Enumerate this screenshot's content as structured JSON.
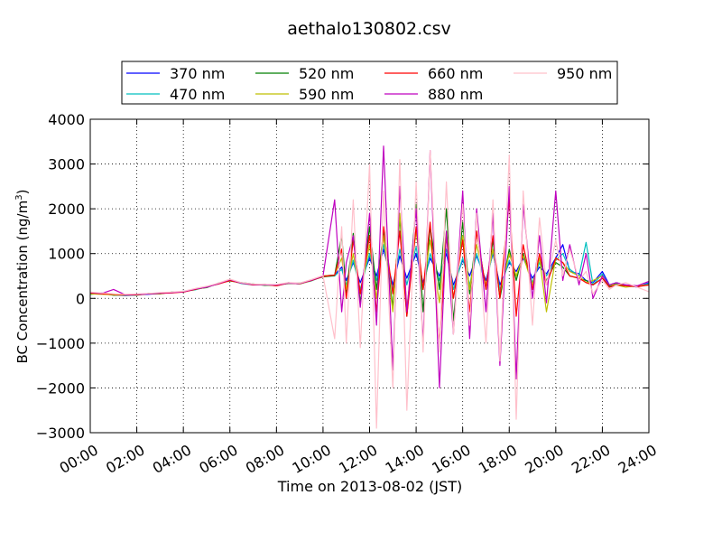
{
  "chart_data": {
    "type": "line",
    "title": "aethalo130802.csv",
    "xlabel": "Time on 2013-08-02 (JST)",
    "ylabel_main": "BC Concentration (ng/m",
    "ylabel_sup": "3",
    "ylabel_close": ")",
    "x_unit": "hours",
    "xlim": [
      0,
      24
    ],
    "ylim": [
      -3000,
      4000
    ],
    "grid": true,
    "grid_style": "dotted",
    "legend_position": "top",
    "x_ticks": [
      {
        "value": 0,
        "label": "00:00"
      },
      {
        "value": 2,
        "label": "02:00"
      },
      {
        "value": 4,
        "label": "04:00"
      },
      {
        "value": 6,
        "label": "06:00"
      },
      {
        "value": 8,
        "label": "08:00"
      },
      {
        "value": 10,
        "label": "10:00"
      },
      {
        "value": 12,
        "label": "12:00"
      },
      {
        "value": 14,
        "label": "14:00"
      },
      {
        "value": 16,
        "label": "16:00"
      },
      {
        "value": 18,
        "label": "18:00"
      },
      {
        "value": 20,
        "label": "20:00"
      },
      {
        "value": 22,
        "label": "22:00"
      },
      {
        "value": 24,
        "label": "24:00"
      }
    ],
    "y_ticks": [
      {
        "value": 4000,
        "label": "4000"
      },
      {
        "value": 3000,
        "label": "3000"
      },
      {
        "value": 2000,
        "label": "2000"
      },
      {
        "value": 1000,
        "label": "1000"
      },
      {
        "value": 0,
        "label": "0"
      },
      {
        "value": -1000,
        "label": "−1000"
      },
      {
        "value": -2000,
        "label": "−2000"
      },
      {
        "value": -3000,
        "label": "−3000"
      }
    ],
    "series": [
      {
        "name": "370 nm",
        "color": "#0000ff",
        "x": [
          0,
          0.5,
          1,
          1.5,
          2,
          2.5,
          3,
          3.5,
          4,
          4.5,
          5,
          5.5,
          6,
          6.5,
          7,
          7.5,
          8,
          8.5,
          9,
          9.5,
          10,
          10.5,
          10.8,
          11,
          11.3,
          11.6,
          12,
          12.3,
          12.6,
          13,
          13.3,
          13.6,
          14,
          14.3,
          14.6,
          15,
          15.3,
          15.6,
          16,
          16.3,
          16.6,
          17,
          17.3,
          17.6,
          18,
          18.3,
          18.6,
          19,
          19.3,
          19.6,
          20,
          20.3,
          20.6,
          21,
          21.3,
          21.6,
          22,
          22.3,
          22.6,
          23,
          23.5,
          24
        ],
        "y": [
          100,
          120,
          80,
          60,
          80,
          90,
          110,
          130,
          150,
          200,
          250,
          330,
          400,
          340,
          310,
          300,
          290,
          350,
          320,
          400,
          500,
          520,
          700,
          400,
          800,
          350,
          900,
          500,
          1100,
          300,
          950,
          450,
          1000,
          350,
          900,
          500,
          1000,
          300,
          850,
          500,
          950,
          400,
          1000,
          300,
          800,
          600,
          900,
          450,
          700,
          550,
          900,
          1200,
          600,
          550,
          400,
          350,
          600,
          300,
          350,
          300,
          250,
          350
        ]
      },
      {
        "name": "470 nm",
        "color": "#00bfbf",
        "x": [
          0,
          0.5,
          1,
          1.5,
          2,
          2.5,
          3,
          3.5,
          4,
          4.5,
          5,
          5.5,
          6,
          6.5,
          7,
          7.5,
          8,
          8.5,
          9,
          9.5,
          10,
          10.5,
          10.8,
          11,
          11.3,
          11.6,
          12,
          12.3,
          12.6,
          13,
          13.3,
          13.6,
          14,
          14.3,
          14.6,
          15,
          15.3,
          15.6,
          16,
          16.3,
          16.6,
          17,
          17.3,
          17.6,
          18,
          18.3,
          18.6,
          19,
          19.3,
          19.6,
          20,
          20.3,
          20.6,
          21,
          21.3,
          21.6,
          22,
          22.3,
          22.6,
          23,
          23.5,
          24
        ],
        "y": [
          110,
          100,
          90,
          70,
          90,
          100,
          120,
          120,
          160,
          190,
          260,
          320,
          410,
          330,
          300,
          310,
          280,
          340,
          330,
          390,
          490,
          500,
          650,
          300,
          850,
          200,
          1000,
          400,
          1200,
          200,
          1100,
          300,
          1150,
          200,
          1000,
          400,
          1100,
          200,
          900,
          300,
          1000,
          300,
          1050,
          200,
          850,
          500,
          950,
          350,
          800,
          500,
          850,
          1000,
          650,
          500,
          1250,
          300,
          550,
          250,
          300,
          280,
          260,
          330
        ]
      },
      {
        "name": "520 nm",
        "color": "#007f00",
        "x": [
          0,
          0.5,
          1,
          1.5,
          2,
          2.5,
          3,
          3.5,
          4,
          4.5,
          5,
          5.5,
          6,
          6.5,
          7,
          7.5,
          8,
          8.5,
          9,
          9.5,
          10,
          10.5,
          10.8,
          11,
          11.3,
          11.6,
          12,
          12.3,
          12.6,
          13,
          13.3,
          13.6,
          14,
          14.3,
          14.6,
          15,
          15.3,
          15.6,
          16,
          16.3,
          16.6,
          17,
          17.3,
          17.6,
          18,
          18.3,
          18.6,
          19,
          19.3,
          19.6,
          20,
          20.3,
          20.6,
          21,
          21.3,
          21.6,
          22,
          22.3,
          22.6,
          23,
          23.5,
          24
        ],
        "y": [
          90,
          110,
          70,
          80,
          70,
          110,
          100,
          140,
          140,
          210,
          240,
          340,
          390,
          350,
          320,
          290,
          300,
          330,
          340,
          410,
          480,
          510,
          1400,
          100,
          1450,
          -100,
          1600,
          200,
          1500,
          -200,
          1800,
          -400,
          2100,
          -300,
          1600,
          200,
          2000,
          -500,
          1700,
          100,
          1500,
          200,
          1300,
          0,
          1100,
          400,
          1000,
          300,
          900,
          400,
          800,
          700,
          500,
          450,
          400,
          300,
          450,
          280,
          320,
          290,
          270,
          300
        ]
      },
      {
        "name": "590 nm",
        "color": "#bfbf00",
        "x": [
          0,
          0.5,
          1,
          1.5,
          2,
          2.5,
          3,
          3.5,
          4,
          4.5,
          5,
          5.5,
          6,
          6.5,
          7,
          7.5,
          8,
          8.5,
          9,
          9.5,
          10,
          10.5,
          10.8,
          11,
          11.3,
          11.6,
          12,
          12.3,
          12.6,
          13,
          13.3,
          13.6,
          14,
          14.3,
          14.6,
          15,
          15.3,
          15.6,
          16,
          16.3,
          16.6,
          17,
          17.3,
          17.6,
          18,
          18.3,
          18.6,
          19,
          19.3,
          19.6,
          20,
          20.3,
          20.6,
          21,
          21.3,
          21.6,
          22,
          22.3,
          22.6,
          23,
          23.5,
          24
        ],
        "y": [
          100,
          90,
          80,
          70,
          80,
          100,
          110,
          130,
          150,
          200,
          250,
          330,
          400,
          340,
          310,
          300,
          290,
          350,
          320,
          400,
          500,
          520,
          900,
          200,
          1000,
          100,
          1200,
          0,
          1400,
          -300,
          1900,
          -200,
          1500,
          200,
          1300,
          -100,
          1500,
          0,
          1400,
          200,
          1200,
          300,
          1100,
          100,
          1000,
          500,
          950,
          300,
          900,
          -300,
          900,
          800,
          600,
          500,
          350,
          400,
          500,
          300,
          300,
          250,
          280,
          300
        ]
      },
      {
        "name": "660 nm",
        "color": "#ff0000",
        "x": [
          0,
          0.5,
          1,
          1.5,
          2,
          2.5,
          3,
          3.5,
          4,
          4.5,
          5,
          5.5,
          6,
          6.5,
          7,
          7.5,
          8,
          8.5,
          9,
          9.5,
          10,
          10.5,
          10.8,
          11,
          11.3,
          11.6,
          12,
          12.3,
          12.6,
          13,
          13.3,
          13.6,
          14,
          14.3,
          14.6,
          15,
          15.3,
          15.6,
          16,
          16.3,
          16.6,
          17,
          17.3,
          17.6,
          18,
          18.3,
          18.6,
          19,
          19.3,
          19.6,
          20,
          20.3,
          20.6,
          21,
          21.3,
          21.6,
          22,
          22.3,
          22.6,
          23,
          23.5,
          24
        ],
        "y": [
          120,
          100,
          90,
          80,
          80,
          100,
          110,
          120,
          140,
          200,
          260,
          320,
          400,
          340,
          300,
          310,
          280,
          340,
          330,
          400,
          490,
          520,
          1100,
          0,
          1300,
          100,
          1400,
          -300,
          1600,
          100,
          1500,
          -400,
          1600,
          200,
          1700,
          -1000,
          1400,
          0,
          1300,
          -300,
          1500,
          200,
          1400,
          0,
          2200,
          -400,
          1200,
          200,
          1000,
          300,
          900,
          800,
          500,
          450,
          350,
          300,
          450,
          250,
          300,
          280,
          260,
          300
        ]
      },
      {
        "name": "880 nm",
        "color": "#bf00bf",
        "x": [
          0,
          0.5,
          1,
          1.5,
          2,
          2.5,
          3,
          3.5,
          4,
          4.5,
          5,
          5.5,
          6,
          6.5,
          7,
          7.5,
          8,
          8.5,
          9,
          9.5,
          10,
          10.5,
          10.8,
          11,
          11.3,
          11.6,
          12,
          12.3,
          12.6,
          13,
          13.3,
          13.6,
          14,
          14.3,
          14.6,
          15,
          15.3,
          15.6,
          16,
          16.3,
          16.6,
          17,
          17.3,
          17.6,
          18,
          18.3,
          18.6,
          19,
          19.3,
          19.6,
          20,
          20.3,
          20.6,
          21,
          21.3,
          21.6,
          22,
          22.3,
          22.6,
          23,
          23.5,
          24
        ],
        "y": [
          130,
          110,
          200,
          80,
          90,
          100,
          120,
          130,
          150,
          210,
          250,
          330,
          420,
          340,
          310,
          300,
          300,
          340,
          330,
          410,
          500,
          2200,
          -300,
          800,
          1400,
          -200,
          1900,
          -600,
          3400,
          -1600,
          2500,
          -300,
          2000,
          -1000,
          3300,
          -2000,
          1500,
          -800,
          2400,
          -900,
          2000,
          -300,
          1900,
          -1500,
          2500,
          -1800,
          2100,
          0,
          1400,
          -100,
          2400,
          400,
          1200,
          300,
          1000,
          0,
          500,
          300,
          350,
          300,
          280,
          380
        ]
      },
      {
        "name": "950 nm",
        "color": "#ffc0cb",
        "x": [
          0,
          0.5,
          1,
          1.5,
          2,
          2.5,
          3,
          3.5,
          4,
          4.5,
          5,
          5.5,
          6,
          6.5,
          7,
          7.5,
          8,
          8.5,
          9,
          9.5,
          10,
          10.5,
          10.8,
          11,
          11.3,
          11.6,
          12,
          12.3,
          12.6,
          13,
          13.3,
          13.6,
          14,
          14.3,
          14.6,
          15,
          15.3,
          15.6,
          16,
          16.3,
          16.6,
          17,
          17.3,
          17.6,
          18,
          18.3,
          18.6,
          19,
          19.3,
          19.6,
          20,
          20.3,
          20.6,
          21,
          21.3,
          21.6,
          22,
          22.3,
          22.6,
          23,
          23.5,
          24
        ],
        "y": [
          140,
          120,
          100,
          90,
          100,
          110,
          130,
          140,
          160,
          220,
          270,
          340,
          430,
          350,
          320,
          310,
          310,
          350,
          340,
          420,
          510,
          -900,
          1600,
          -1000,
          2200,
          -1100,
          3000,
          -2900,
          2400,
          -2000,
          3100,
          -2500,
          2600,
          -1200,
          3300,
          -1200,
          2600,
          -800,
          2100,
          -600,
          1900,
          -1000,
          2200,
          -1400,
          3200,
          -2700,
          2400,
          -600,
          1800,
          300,
          1300,
          500,
          1100,
          400,
          600,
          100,
          400,
          200,
          300,
          350,
          250,
          150
        ]
      }
    ]
  }
}
